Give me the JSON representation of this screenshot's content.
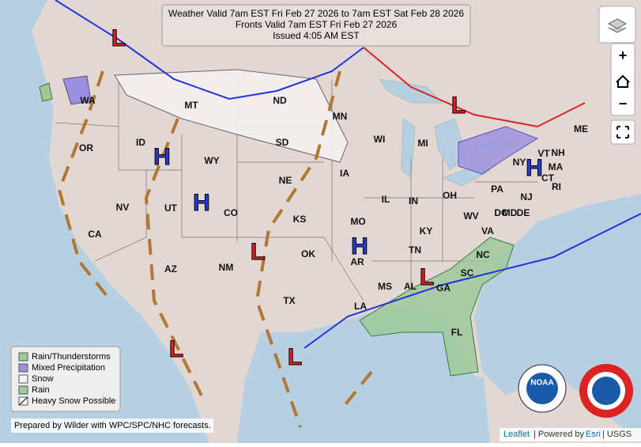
{
  "header": {
    "lines": [
      "Weather Valid 7am EST Fri Feb 27 2026 to 7am EST Sat Feb 28 2026",
      "Fronts Valid 7am EST Fri Feb 27 2026",
      "Issued 4:05 AM EST"
    ]
  },
  "states": [
    "WA",
    "OR",
    "CA",
    "ID",
    "NV",
    "MT",
    "WY",
    "UT",
    "AZ",
    "CO",
    "NM",
    "ND",
    "SD",
    "NE",
    "KS",
    "OK",
    "TX",
    "MN",
    "IA",
    "MO",
    "AR",
    "LA",
    "WI",
    "IL",
    "MI",
    "IN",
    "OH",
    "KY",
    "TN",
    "MS",
    "AL",
    "GA",
    "FL",
    "SC",
    "NC",
    "VA",
    "WV",
    "PA",
    "NY",
    "ME",
    "NH",
    "VT",
    "MA",
    "CT",
    "RI",
    "NJ",
    "DE",
    "MD",
    "DC"
  ],
  "pressure_centers": [
    "L",
    "L",
    "L",
    "L",
    "L",
    "L",
    "H",
    "H",
    "H",
    "H"
  ],
  "legend": [
    "Rain/Thunderstorms",
    "Mixed Precipitation",
    "Snow",
    "Rain",
    "Heavy Snow Possible"
  ],
  "controls": {
    "zoom_in": "+",
    "zoom_out": "−"
  },
  "credits": "Prepared by Wilder with WPC/SPC/NHC forecasts.",
  "attribution": {
    "leaflet": "Leaflet",
    "powered": "| Powered by",
    "esri": "Esri",
    "usgs": "| USGS"
  },
  "logos": {
    "noaa": "NOAA"
  }
}
